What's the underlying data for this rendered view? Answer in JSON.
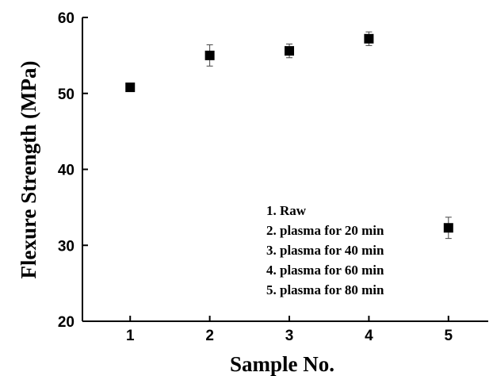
{
  "chart_data": {
    "type": "scatter",
    "title": "",
    "xlabel": "Sample No.",
    "ylabel": "Flexure Strength (MPa)",
    "xlim": [
      0.4,
      5.5
    ],
    "ylim": [
      20,
      60
    ],
    "x_ticks": [
      "1",
      "2",
      "3",
      "4",
      "5"
    ],
    "y_ticks": [
      "20",
      "30",
      "40",
      "50",
      "60"
    ],
    "grid": false,
    "legend_position": "center-right",
    "legend": [
      "1. Raw",
      "2. plasma for 20 min",
      "3. plasma for 40 min",
      "4. plasma for 60 min",
      "5. plasma for 80 min"
    ],
    "series": [
      {
        "x": [
          1,
          2,
          3,
          4,
          5
        ],
        "y": [
          50.8,
          55.0,
          55.6,
          57.2,
          32.3
        ],
        "error": [
          0.3,
          1.4,
          0.9,
          0.9,
          1.4
        ]
      }
    ],
    "marker_color": "#000000"
  }
}
